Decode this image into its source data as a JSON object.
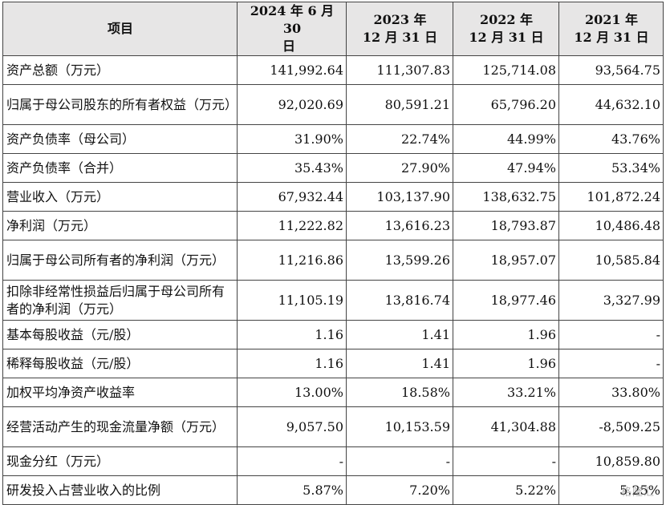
{
  "table": {
    "headers": [
      {
        "line1": "项目",
        "line2": ""
      },
      {
        "line1": "2024 年 6 月 30",
        "line2": "日"
      },
      {
        "line1": "2023 年",
        "line2": "12 月 31 日"
      },
      {
        "line1": "2022 年",
        "line2": "12 月 31 日"
      },
      {
        "line1": "2021 年",
        "line2": "12 月 31 日"
      }
    ],
    "rows": [
      {
        "label": "资产总额（万元）",
        "values": [
          "141,992.64",
          "111,307.83",
          "125,714.08",
          "93,564.75"
        ]
      },
      {
        "label": "归属于母公司股东的所有者权益（万元）",
        "values": [
          "92,020.69",
          "80,591.21",
          "65,796.20",
          "44,632.10"
        ]
      },
      {
        "label": "资产负债率（母公司）",
        "values": [
          "31.90%",
          "22.74%",
          "44.99%",
          "43.76%"
        ]
      },
      {
        "label": "资产负债率（合并）",
        "values": [
          "35.43%",
          "27.90%",
          "47.94%",
          "53.34%"
        ]
      },
      {
        "label": "营业收入（万元）",
        "values": [
          "67,932.44",
          "103,137.90",
          "138,632.75",
          "101,872.24"
        ]
      },
      {
        "label": "净利润（万元）",
        "values": [
          "11,222.82",
          "13,616.23",
          "18,793.87",
          "10,486.48"
        ]
      },
      {
        "label": "归属于母公司所有者的净利润（万元）",
        "values": [
          "11,216.86",
          "13,599.26",
          "18,957.07",
          "10,585.84"
        ]
      },
      {
        "label": "扣除非经常性损益后归属于母公司所有者的净利润（万元）",
        "values": [
          "11,105.19",
          "13,816.74",
          "18,977.46",
          "3,327.99"
        ]
      },
      {
        "label": "基本每股收益（元/股）",
        "values": [
          "1.16",
          "1.41",
          "1.96",
          "-"
        ]
      },
      {
        "label": "稀释每股收益（元/股）",
        "values": [
          "1.16",
          "1.41",
          "1.96",
          "-"
        ]
      },
      {
        "label": "加权平均净资产收益率",
        "values": [
          "13.00%",
          "18.58%",
          "33.21%",
          "33.80%"
        ]
      },
      {
        "label": "经营活动产生的现金流量净额（万元）",
        "values": [
          "9,057.50",
          "10,153.59",
          "41,304.88",
          "-8,509.25"
        ]
      },
      {
        "label": "现金分红（万元）",
        "values": [
          "-",
          "-",
          "-",
          "10,859.80"
        ]
      },
      {
        "label": "研发投入占营业收入的比例",
        "values": [
          "5.87%",
          "7.20%",
          "5.22%",
          "5.25%"
        ]
      }
    ]
  },
  "watermark": "格隆汇"
}
